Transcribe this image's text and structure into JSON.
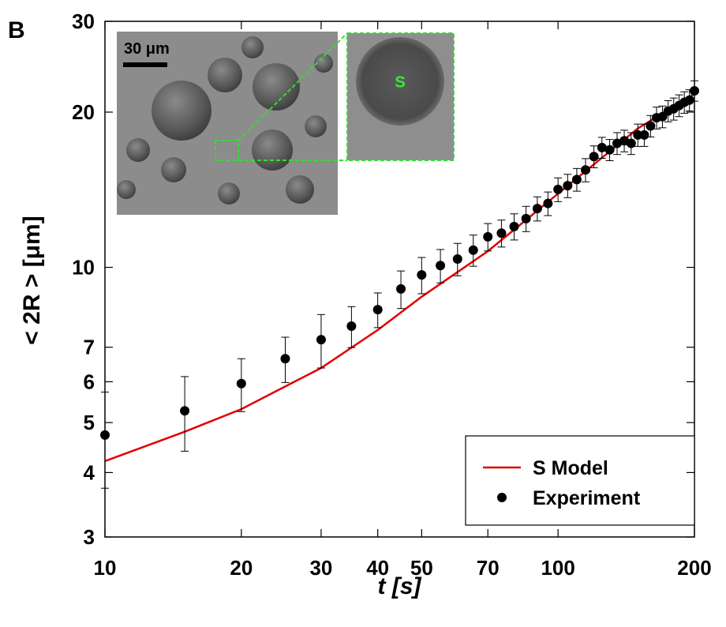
{
  "chart_data": {
    "type": "scatter",
    "panel_label": "B",
    "xlabel": "t [s]",
    "ylabel": "< 2R > [μm]",
    "xscale": "log",
    "yscale": "log",
    "xlim": [
      10,
      200
    ],
    "ylim": [
      3,
      30
    ],
    "xticks": [
      10,
      20,
      30,
      40,
      50,
      70,
      100,
      200
    ],
    "yticks": [
      3,
      4,
      5,
      6,
      7,
      10,
      20,
      30
    ],
    "legend": "lower right",
    "series": [
      {
        "name": "S Model",
        "type": "line",
        "color": "#e00000",
        "x": [
          10,
          15,
          20,
          30,
          40,
          50,
          70,
          100,
          150,
          200
        ],
        "values": [
          4.21,
          4.8,
          5.31,
          6.38,
          7.56,
          8.77,
          10.75,
          13.9,
          18.6,
          21.7
        ]
      },
      {
        "name": "Experiment",
        "type": "scatter",
        "color": "#000000",
        "x": [
          10,
          15,
          20,
          25,
          30,
          35,
          40,
          45,
          50,
          55,
          60,
          65,
          70,
          75,
          80,
          85,
          90,
          95,
          100,
          105,
          110,
          115,
          120,
          125,
          130,
          135,
          140,
          145,
          150,
          155,
          160,
          165,
          170,
          175,
          180,
          185,
          190,
          195,
          200
        ],
        "values": [
          4.73,
          5.27,
          5.95,
          6.65,
          7.24,
          7.69,
          8.28,
          9.08,
          9.67,
          10.08,
          10.38,
          10.8,
          11.46,
          11.65,
          12.0,
          12.43,
          13.0,
          13.3,
          14.16,
          14.4,
          14.8,
          15.45,
          16.4,
          17.07,
          16.9,
          17.4,
          17.6,
          17.4,
          18.06,
          18.06,
          18.8,
          19.5,
          19.6,
          20.1,
          20.3,
          20.6,
          20.9,
          21.1,
          22.0
        ],
        "errors": [
          1.0,
          0.87,
          0.7,
          0.67,
          0.86,
          0.7,
          0.64,
          0.76,
          0.78,
          0.75,
          0.75,
          0.75,
          0.7,
          0.7,
          0.7,
          0.7,
          0.7,
          0.7,
          0.75,
          0.75,
          0.75,
          0.8,
          0.8,
          0.8,
          0.8,
          0.85,
          0.85,
          0.85,
          0.9,
          0.9,
          0.9,
          0.95,
          0.95,
          0.95,
          1.0,
          1.0,
          1.0,
          1.0,
          1.0
        ]
      }
    ]
  },
  "inset": {
    "scale_label": "30 μm",
    "label": "S"
  }
}
